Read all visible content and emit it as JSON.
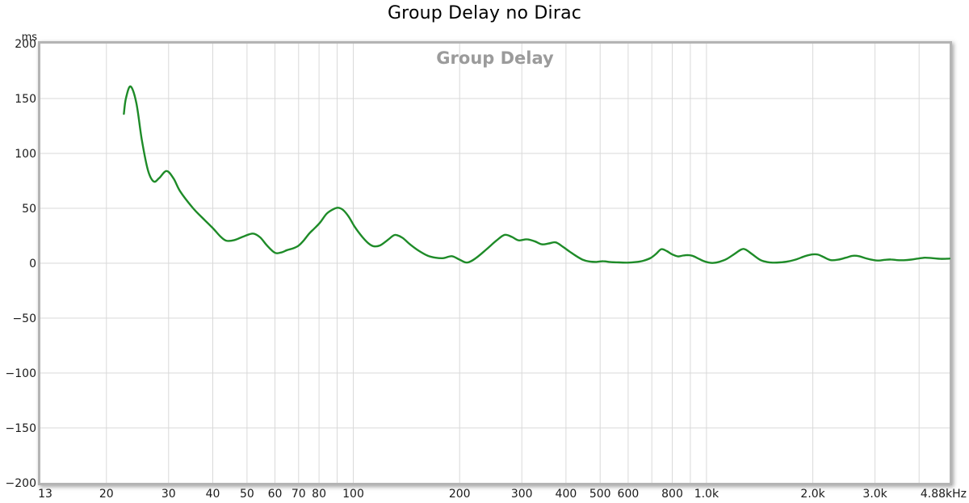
{
  "chart_data": {
    "type": "line",
    "title": "Group Delay no Dirac",
    "inner_label": "Group Delay",
    "xlabel": "",
    "ylabel": "ms",
    "unit": "ms",
    "x_scale": "log",
    "xlim": [
      13,
      4880
    ],
    "ylim": [
      -200,
      200
    ],
    "grid": true,
    "colors": {
      "trace": "#1e8b28",
      "grid": "#d9d9d9",
      "frame": "#b4b4b4",
      "inner_label": "#9b9b9b",
      "tick_text": "#1a1a1a",
      "title_text": "#000000"
    },
    "y_ticks": [
      {
        "label": "200",
        "v": 200
      },
      {
        "label": "150",
        "v": 150
      },
      {
        "label": "100",
        "v": 100
      },
      {
        "label": "50",
        "v": 50
      },
      {
        "label": "0",
        "v": 0
      },
      {
        "label": "−50",
        "v": -50
      },
      {
        "label": "−100",
        "v": -100
      },
      {
        "label": "−150",
        "v": -150
      },
      {
        "label": "−200",
        "v": -200
      }
    ],
    "y_gridlines": [
      150,
      100,
      50,
      0,
      -50,
      -100,
      -150
    ],
    "x_ticks": [
      {
        "label": "13",
        "f": 13
      },
      {
        "label": "20",
        "f": 20
      },
      {
        "label": "30",
        "f": 30
      },
      {
        "label": "40",
        "f": 40
      },
      {
        "label": "50",
        "f": 50
      },
      {
        "label": "60",
        "f": 60
      },
      {
        "label": "70",
        "f": 70
      },
      {
        "label": "80",
        "f": 80
      },
      {
        "label": "100",
        "f": 100
      },
      {
        "label": "200",
        "f": 200
      },
      {
        "label": "300",
        "f": 300
      },
      {
        "label": "400",
        "f": 400
      },
      {
        "label": "500",
        "f": 500
      },
      {
        "label": "600",
        "f": 600
      },
      {
        "label": "800",
        "f": 800
      },
      {
        "label": "1.0k",
        "f": 1000
      },
      {
        "label": "2.0k",
        "f": 2000
      },
      {
        "label": "3.0k",
        "f": 3000
      },
      {
        "label": "4.88kHz",
        "f": 4880
      }
    ],
    "x_gridlines": [
      20,
      30,
      40,
      50,
      60,
      70,
      80,
      90,
      100,
      200,
      300,
      400,
      500,
      600,
      700,
      800,
      900,
      1000,
      2000,
      3000,
      4000
    ],
    "series": [
      {
        "name": "Group Delay",
        "color": "#1e8b28",
        "points": [
          [
            22.4,
            136
          ],
          [
            22.7,
            150
          ],
          [
            23.4,
            161
          ],
          [
            24.3,
            146
          ],
          [
            25.2,
            112
          ],
          [
            26.2,
            85
          ],
          [
            27.2,
            74.5
          ],
          [
            28.2,
            77.5
          ],
          [
            29.6,
            84
          ],
          [
            31,
            77
          ],
          [
            32.4,
            65
          ],
          [
            35.2,
            50
          ],
          [
            37.2,
            42
          ],
          [
            40,
            32
          ],
          [
            42,
            24.5
          ],
          [
            43.7,
            20.5
          ],
          [
            46,
            21
          ],
          [
            49,
            24.5
          ],
          [
            52,
            27
          ],
          [
            54.5,
            23.5
          ],
          [
            57,
            16
          ],
          [
            60,
            9.5
          ],
          [
            62.5,
            9.8
          ],
          [
            65,
            12
          ],
          [
            67.5,
            13.5
          ],
          [
            70,
            16
          ],
          [
            72.5,
            21
          ],
          [
            75,
            27
          ],
          [
            77.5,
            31.5
          ],
          [
            80.5,
            37
          ],
          [
            84,
            45
          ],
          [
            87.5,
            49
          ],
          [
            90.5,
            50.5
          ],
          [
            93.5,
            48.5
          ],
          [
            97,
            42.5
          ],
          [
            101,
            33
          ],
          [
            106,
            24
          ],
          [
            110,
            18.5
          ],
          [
            114,
            15.5
          ],
          [
            119,
            16.2
          ],
          [
            125,
            21
          ],
          [
            130,
            25.3
          ],
          [
            133,
            25.5
          ],
          [
            138,
            23
          ],
          [
            145,
            17
          ],
          [
            153,
            11.5
          ],
          [
            162,
            7
          ],
          [
            171,
            5
          ],
          [
            180,
            4.6
          ],
          [
            190,
            6.4
          ],
          [
            200,
            3.2
          ],
          [
            210,
            0.6
          ],
          [
            222,
            4.5
          ],
          [
            238,
            12.5
          ],
          [
            254,
            20.5
          ],
          [
            268,
            25.8
          ],
          [
            281,
            24
          ],
          [
            294,
            20.8
          ],
          [
            310,
            21.8
          ],
          [
            326,
            20
          ],
          [
            342,
            17.2
          ],
          [
            358,
            18
          ],
          [
            374,
            19
          ],
          [
            392,
            15
          ],
          [
            410,
            10.5
          ],
          [
            428,
            6.5
          ],
          [
            446,
            3.2
          ],
          [
            465,
            1.6
          ],
          [
            488,
            1.2
          ],
          [
            510,
            1.8
          ],
          [
            535,
            1
          ],
          [
            565,
            0.7
          ],
          [
            598,
            0.5
          ],
          [
            630,
            1
          ],
          [
            662,
            2.2
          ],
          [
            695,
            4.8
          ],
          [
            720,
            8.5
          ],
          [
            745,
            12.8
          ],
          [
            772,
            11
          ],
          [
            800,
            8
          ],
          [
            830,
            6.2
          ],
          [
            858,
            7
          ],
          [
            885,
            7.4
          ],
          [
            912,
            6.8
          ],
          [
            945,
            4.5
          ],
          [
            980,
            2
          ],
          [
            1015,
            0.6
          ],
          [
            1048,
            0.3
          ],
          [
            1090,
            1.4
          ],
          [
            1140,
            3.8
          ],
          [
            1195,
            8
          ],
          [
            1255,
            12.5
          ],
          [
            1290,
            12.4
          ],
          [
            1350,
            8
          ],
          [
            1420,
            3
          ],
          [
            1480,
            1.2
          ],
          [
            1540,
            0.5
          ],
          [
            1610,
            0.7
          ],
          [
            1700,
            1.6
          ],
          [
            1800,
            3.6
          ],
          [
            1900,
            6.4
          ],
          [
            2000,
            8
          ],
          [
            2070,
            7.8
          ],
          [
            2150,
            5.5
          ],
          [
            2250,
            2.8
          ],
          [
            2360,
            3.2
          ],
          [
            2480,
            5
          ],
          [
            2600,
            6.8
          ],
          [
            2710,
            6.3
          ],
          [
            2830,
            4.4
          ],
          [
            2960,
            3
          ],
          [
            3080,
            2.4
          ],
          [
            3200,
            3.1
          ],
          [
            3330,
            3.4
          ],
          [
            3470,
            2.8
          ],
          [
            3620,
            2.7
          ],
          [
            3800,
            3.3
          ],
          [
            3980,
            4.3
          ],
          [
            4150,
            5
          ],
          [
            4350,
            4.6
          ],
          [
            4600,
            4
          ],
          [
            4880,
            4.2
          ]
        ]
      }
    ],
    "legend": "none"
  }
}
